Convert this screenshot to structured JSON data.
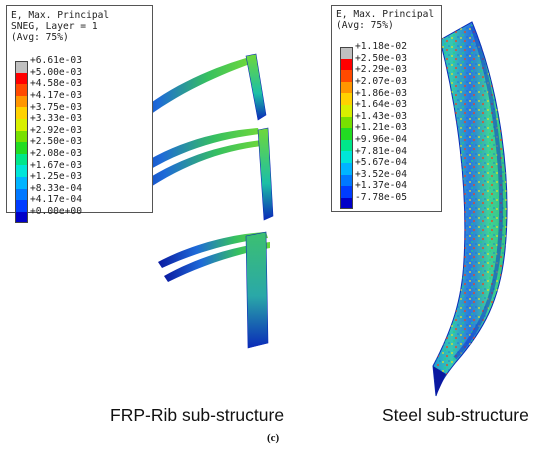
{
  "frp_legend": {
    "title": "E, Max. Principal",
    "layer": "SNEG, Layer = 1",
    "avg": "(Avg: 75%)",
    "ticks": [
      "+6.61e-03",
      "+5.00e-03",
      "+4.58e-03",
      "+4.17e-03",
      "+3.75e-03",
      "+3.33e-03",
      "+2.92e-03",
      "+2.50e-03",
      "+2.08e-03",
      "+1.67e-03",
      "+1.25e-03",
      "+8.33e-04",
      "+4.17e-04",
      "+0.00e+00"
    ]
  },
  "steel_legend": {
    "title": "E, Max. Principal",
    "avg": "(Avg: 75%)",
    "ticks": [
      "+1.18e-02",
      "+2.50e-03",
      "+2.29e-03",
      "+2.07e-03",
      "+1.86e-03",
      "+1.64e-03",
      "+1.43e-03",
      "+1.21e-03",
      "+9.96e-04",
      "+7.81e-04",
      "+5.67e-04",
      "+3.52e-04",
      "+1.37e-04",
      "-7.78e-05"
    ]
  },
  "scale_colors": [
    "#c0c0c0",
    "#ff0000",
    "#ff4a00",
    "#ff9600",
    "#ffd200",
    "#d8f000",
    "#78e000",
    "#22dc22",
    "#00e68a",
    "#00e5d8",
    "#00b4ff",
    "#0078ff",
    "#003cff",
    "#0000c8"
  ],
  "captions": {
    "frp": "FRP-Rib sub-structure",
    "steel": "Steel sub-structure",
    "label": "(c)"
  }
}
